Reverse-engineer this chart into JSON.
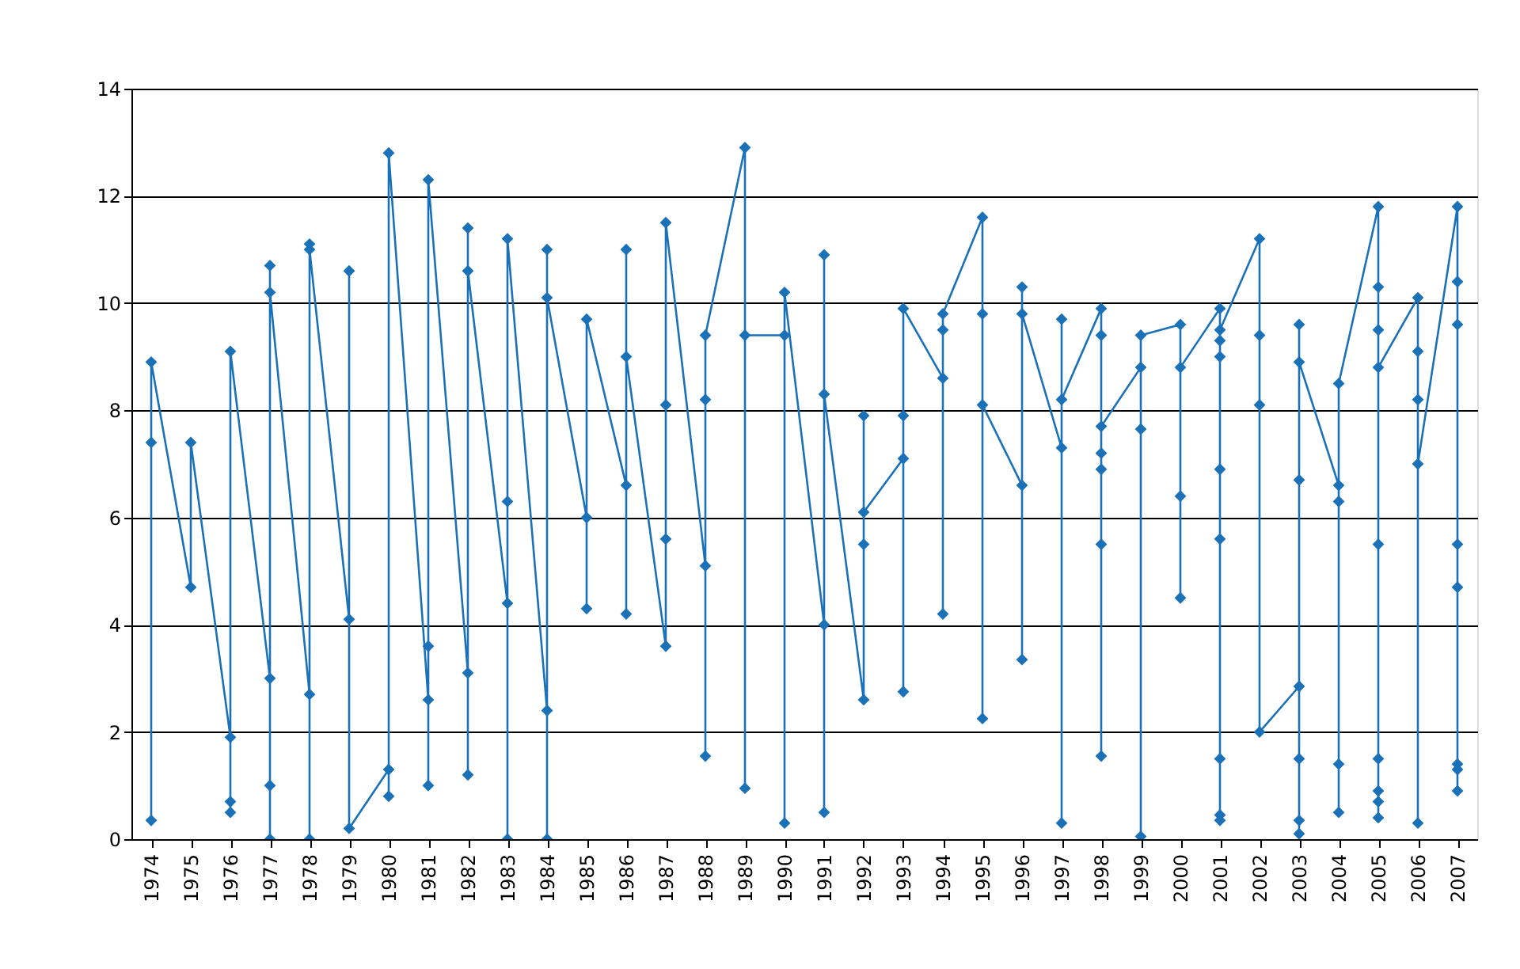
{
  "chart_data": {
    "type": "line",
    "series": [
      {
        "color": "#1a71b8",
        "x": [
          1974,
          1974,
          1974,
          1975,
          1975,
          1976,
          1976,
          1976,
          1976,
          1977,
          1977,
          1977,
          1977,
          1977,
          1978,
          1978,
          1978,
          1978,
          1979,
          1979,
          1979,
          1980,
          1980,
          1980,
          1981,
          1981,
          1981,
          1981,
          1982,
          1982,
          1982,
          1982,
          1983,
          1983,
          1983,
          1983,
          1984,
          1984,
          1984,
          1984,
          1985,
          1985,
          1985,
          1986,
          1986,
          1986,
          1986,
          1987,
          1987,
          1987,
          1987,
          1988,
          1988,
          1988,
          1988,
          1989,
          1989,
          1989,
          1990,
          1990,
          1990,
          1991,
          1991,
          1991,
          1991,
          1992,
          1992,
          1992,
          1992,
          1993,
          1993,
          1993,
          1993,
          1994,
          1994,
          1994,
          1994,
          1995,
          1995,
          1995,
          1995,
          1996,
          1996,
          1996,
          1996,
          1997,
          1997,
          1997,
          1997,
          1998,
          1998,
          1998,
          1998,
          1998,
          1998,
          1998,
          1999,
          1999,
          1999,
          1999,
          2000,
          2000,
          2000,
          2000,
          2001,
          2001,
          2001,
          2001,
          2001,
          2001,
          2001,
          2001,
          2001,
          2002,
          2002,
          2002,
          2002,
          2003,
          2003,
          2003,
          2003,
          2003,
          2003,
          2003,
          2004,
          2004,
          2004,
          2004,
          2004,
          2005,
          2005,
          2005,
          2005,
          2005,
          2005,
          2005,
          2005,
          2005,
          2006,
          2006,
          2006,
          2006,
          2006,
          2007,
          2007,
          2007,
          2007,
          2007,
          2007,
          2007,
          2007
        ],
        "values": [
          7.4,
          0.35,
          8.9,
          4.7,
          7.4,
          1.9,
          0.7,
          0.5,
          9.1,
          3.0,
          1.0,
          0.0,
          10.7,
          10.2,
          2.7,
          0.0,
          11.1,
          11.0,
          4.1,
          10.6,
          0.2,
          1.3,
          0.8,
          12.8,
          2.6,
          1.0,
          3.6,
          12.3,
          3.1,
          1.2,
          11.4,
          10.6,
          4.4,
          0.0,
          6.3,
          11.2,
          2.4,
          0.0,
          11.0,
          10.1,
          6.0,
          4.3,
          9.7,
          6.6,
          4.2,
          11.0,
          9.0,
          3.6,
          5.6,
          8.1,
          11.5,
          5.1,
          1.55,
          8.2,
          9.4,
          12.9,
          0.95,
          9.4,
          9.4,
          0.3,
          10.2,
          4.0,
          0.5,
          10.9,
          8.3,
          2.6,
          5.5,
          7.9,
          6.1,
          7.1,
          2.75,
          7.9,
          9.9,
          8.6,
          4.2,
          9.5,
          9.8,
          11.6,
          9.8,
          2.25,
          8.1,
          6.6,
          3.35,
          10.3,
          9.8,
          7.3,
          0.3,
          9.7,
          8.2,
          9.9,
          1.55,
          5.5,
          6.9,
          7.2,
          9.4,
          7.7,
          8.8,
          0.05,
          7.65,
          9.4,
          9.6,
          4.5,
          6.4,
          8.8,
          9.9,
          0.35,
          0.45,
          1.5,
          5.6,
          6.9,
          9.0,
          9.3,
          9.5,
          11.2,
          9.4,
          8.1,
          2.0,
          2.85,
          0.1,
          0.35,
          1.5,
          6.7,
          9.6,
          8.9,
          6.6,
          0.5,
          1.4,
          6.3,
          8.5,
          11.8,
          10.3,
          9.5,
          5.5,
          1.5,
          0.9,
          0.7,
          0.4,
          8.8,
          10.1,
          0.3,
          9.1,
          8.2,
          7.0,
          11.8,
          0.9,
          1.3,
          1.4,
          4.7,
          5.5,
          9.6,
          10.4
        ]
      }
    ],
    "xlim": [
      1973.5,
      2007.5
    ],
    "xticks": [
      1974,
      1975,
      1976,
      1977,
      1978,
      1979,
      1980,
      1981,
      1982,
      1983,
      1984,
      1985,
      1986,
      1987,
      1988,
      1989,
      1990,
      1991,
      1992,
      1993,
      1994,
      1995,
      1996,
      1997,
      1998,
      1999,
      2000,
      2001,
      2002,
      2003,
      2004,
      2005,
      2006,
      2007
    ],
    "ylim": [
      0,
      14
    ],
    "yticks": [
      0,
      2,
      4,
      6,
      8,
      10,
      12,
      14
    ],
    "grid": "y",
    "marker": "diamond",
    "line_style": "solid"
  }
}
